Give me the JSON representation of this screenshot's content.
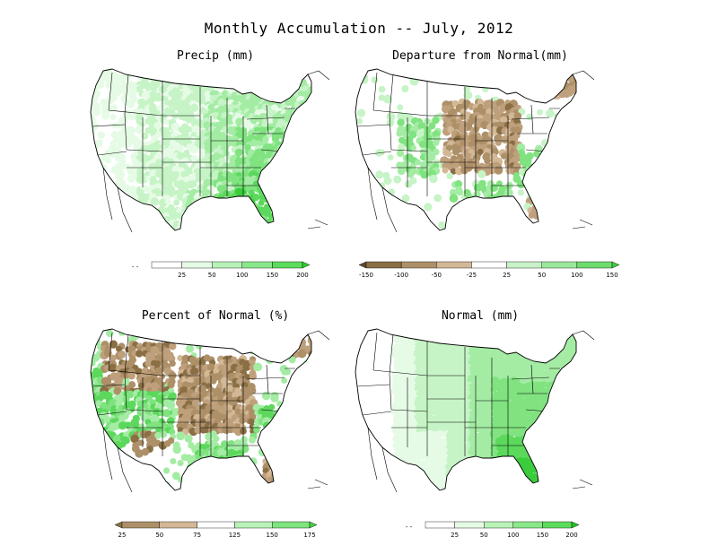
{
  "title": "Monthly Accumulation -- July, 2012",
  "panels": [
    {
      "title": "Precip (mm)",
      "scheme": "green",
      "colorbar": {
        "ticks": [
          "25",
          "50",
          "100",
          "150",
          "200"
        ],
        "colors": [
          "#ffffff",
          "#e6fbe6",
          "#b8f2b8",
          "#8ae88a",
          "#5cdc5c",
          "#2fcc2f"
        ],
        "left_triangle": false
      }
    },
    {
      "title": "Departure from Normal(mm)",
      "scheme": "diverge",
      "colorbar": {
        "ticks": [
          "-150",
          "-100",
          "-50",
          "-25",
          "25",
          "50",
          "100",
          "150"
        ],
        "colors": [
          "#5c4a2e",
          "#8a6f45",
          "#ad9068",
          "#d3b896",
          "#ffffff",
          "#c8f2c8",
          "#9ae89a",
          "#6cdc6c",
          "#3ecc3e"
        ],
        "left_triangle": true
      }
    },
    {
      "title": "Percent of Normal (%)",
      "scheme": "diverge2",
      "colorbar": {
        "ticks": [
          "25",
          "50",
          "75",
          "125",
          "150",
          "175"
        ],
        "colors": [
          "#8a6f45",
          "#ad9068",
          "#d3b896",
          "#ffffff",
          "#b8f2b8",
          "#7ee47e",
          "#44d044"
        ],
        "left_triangle": true
      }
    },
    {
      "title": "Normal (mm)",
      "scheme": "normal",
      "colorbar": {
        "ticks": [
          "25",
          "50",
          "100",
          "150",
          "200"
        ],
        "colors": [
          "#ffffff",
          "#e6fbe6",
          "#b8f2b8",
          "#8ae88a",
          "#5cdc5c",
          "#1fc41f"
        ],
        "left_triangle": false
      }
    }
  ]
}
